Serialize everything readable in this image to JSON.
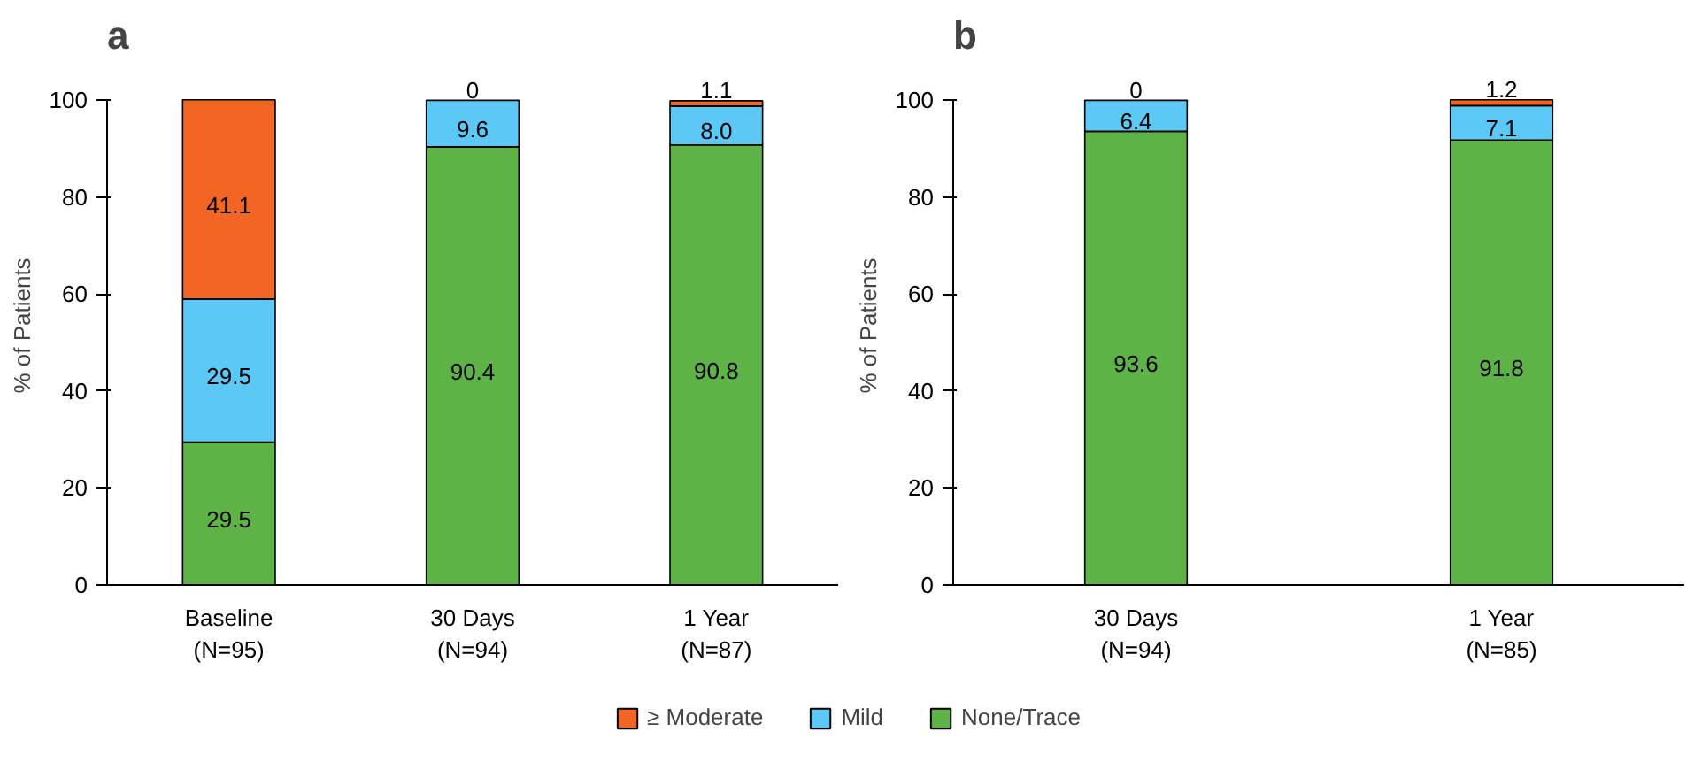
{
  "chart_data": [
    {
      "type": "bar",
      "title": "a",
      "stacked": true,
      "categories": [
        "Baseline\n(N=95)",
        "30 Days\n(N=94)",
        "1 Year\n(N=87)"
      ],
      "ylabel": "% of Patients",
      "ylim": [
        0,
        100
      ],
      "yticks": [
        0,
        20,
        40,
        60,
        80,
        100
      ],
      "grid": false,
      "legend": "bottom",
      "series": [
        {
          "name": "None/Trace",
          "color": "#5db346",
          "values": [
            29.5,
            90.4,
            90.8
          ],
          "value_labels": [
            "29.5",
            "90.4",
            "90.8"
          ]
        },
        {
          "name": "Mild",
          "color": "#5bc8f5",
          "values": [
            29.5,
            9.6,
            8.0
          ],
          "value_labels": [
            "29.5",
            "9.6",
            "8.0"
          ]
        },
        {
          "name": "≥ Moderate",
          "color": "#f26522",
          "values": [
            41.1,
            0,
            1.1
          ],
          "value_labels": [
            "41.1",
            "0",
            "1.1"
          ]
        }
      ]
    },
    {
      "type": "bar",
      "title": "b",
      "stacked": true,
      "categories": [
        "30 Days\n(N=94)",
        "1 Year\n(N=85)"
      ],
      "ylabel": "% of Patients",
      "ylim": [
        0,
        100
      ],
      "yticks": [
        0,
        20,
        40,
        60,
        80,
        100
      ],
      "grid": false,
      "legend": false,
      "series": [
        {
          "name": "None/Trace",
          "color": "#5db346",
          "values": [
            93.6,
            91.8
          ],
          "value_labels": [
            "93.6",
            "91.8"
          ]
        },
        {
          "name": "Mild",
          "color": "#5bc8f5",
          "values": [
            6.4,
            7.1
          ],
          "value_labels": [
            "6.4",
            "7.1"
          ]
        },
        {
          "name": "≥ Moderate",
          "color": "#f26522",
          "values": [
            0,
            1.2
          ],
          "value_labels": [
            "0",
            "1.2"
          ]
        }
      ]
    }
  ]
}
